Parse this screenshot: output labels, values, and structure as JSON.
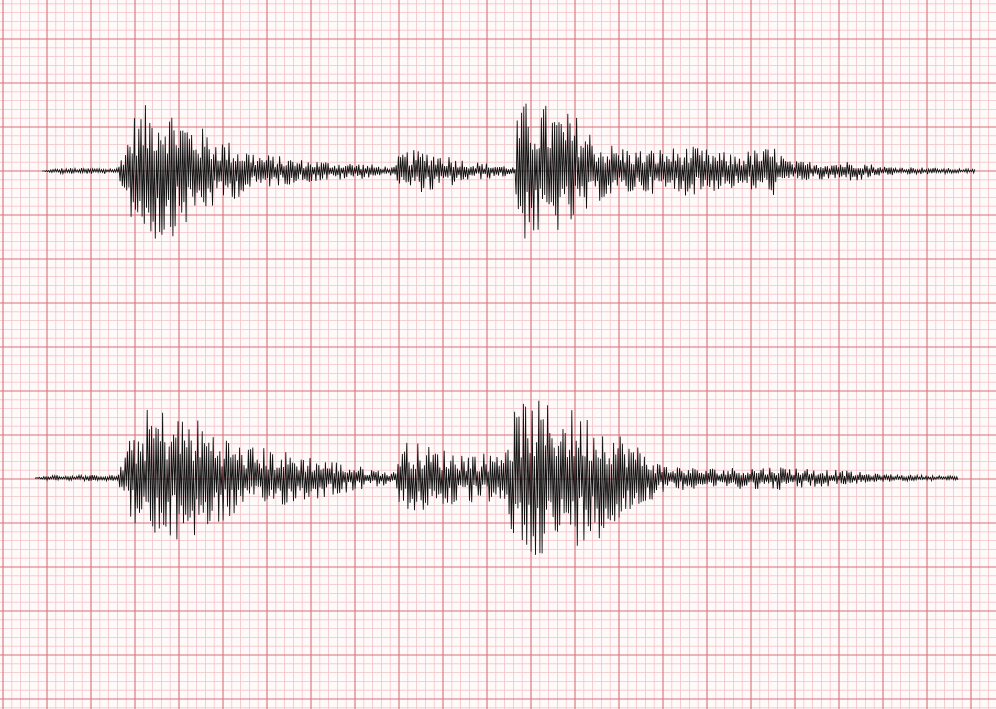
{
  "paper": {
    "background_color": "#fffafa",
    "major_grid_color": "#d96f78",
    "minor_grid_color": "#f3c3c8",
    "trace_color": "#111111"
  },
  "traces": [
    {
      "id": "trace-1"
    },
    {
      "id": "trace-2"
    }
  ]
}
